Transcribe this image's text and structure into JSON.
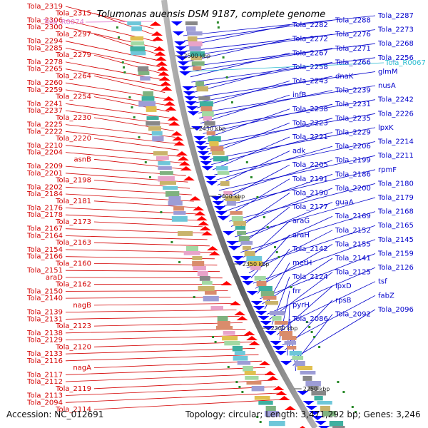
{
  "title": "Tolumonas auensis DSM 9187, complete genome",
  "footer": {
    "accession": "Accession: NC_012691",
    "topology": "Topology: circular; Length: 3,471,292 bp; Genes: 3,246"
  },
  "scale_labels": [
    "2500 kbp",
    "2450 kbp",
    "2400 kbp",
    "2350 kbp",
    "2300 kbp",
    "2250 kbp"
  ],
  "left_labels": [
    "Tola_2319",
    "Tola_2315",
    "Tola_2306",
    "Tola_2300",
    "Tola_2297",
    "Tola_2294",
    "Tola_2285",
    "Tola_2279",
    "Tola_2278",
    "Tola_2265",
    "Tola_2264",
    "Tola_2260",
    "Tola_2259",
    "Tola_2254",
    "Tola_2241",
    "Tola_2237",
    "Tola_2230",
    "Tola_2225",
    "Tola_2222",
    "Tola_2220",
    "Tola_2210",
    "Tola_2204",
    "asnB",
    "Tola_2209",
    "Tola_2201",
    "Tola_2198",
    "Tola_2202",
    "Tola_2184",
    "Tola_2181",
    "Tola_2176",
    "Tola_2178",
    "Tola_2173",
    "Tola_2167",
    "Tola_2164",
    "Tola_2163",
    "Tola_2154",
    "Tola_2166",
    "Tola_2160",
    "Tola_2151",
    "araD",
    "Tola_2162",
    "Tola_2150",
    "Tola_2140",
    "nagB",
    "Tola_2139",
    "Tola_2131",
    "Tola_2123",
    "Tola_2138",
    "Tola_2129",
    "Tola_2120",
    "Tola_2133",
    "Tola_2116",
    "nagA",
    "Tola_2117",
    "Tola_2112",
    "Tola_2119",
    "Tola_2113",
    "Tola_2094",
    "Tola_2114"
  ],
  "left_rna_label": "Tola_R0074",
  "right_labels": [
    "Tola_2287",
    "Tola_2288",
    "Tola_2282",
    "Tola_2273",
    "Tola_2276",
    "Tola_2272",
    "Tola_2268",
    "Tola_2271",
    "Tola_2267",
    "Tola_2256",
    "Tola_2266",
    "Tola_2258",
    "glmM",
    "dnaK",
    "Tola_2243",
    "nusA",
    "Tola_2239",
    "infB",
    "Tola_2242",
    "Tola_2231",
    "Tola_2238",
    "Tola_2226",
    "Tola_2235",
    "Tola_2223",
    "lpxK",
    "Tola_2229",
    "Tola_2221",
    "Tola_2214",
    "Tola_2206",
    "adk",
    "Tola_2211",
    "Tola_2199",
    "Tola_2205",
    "rpmF",
    "Tola_2186",
    "Tola_2191",
    "Tola_2180",
    "Tola_2200",
    "Tola_2190",
    "Tola_2179",
    "guaA",
    "Tola_2177",
    "Tola_2168",
    "Tola_2169",
    "araG",
    "Tola_2165",
    "Tola_2152",
    "araH",
    "Tola_2145",
    "Tola_2155",
    "Tola_2142",
    "Tola_2159",
    "Tola_2141",
    "metH",
    "Tola_2126",
    "Tola_2125",
    "Tola_2124",
    "tsf",
    "lpxD",
    "frr",
    "fabZ",
    "rpsB",
    "pyrH",
    "Tola_2096",
    "Tola_2092",
    "Tola_2086"
  ],
  "right_rna_label": "Tola_R0067",
  "colors": {
    "left_gene_lines": "#d40000",
    "right_gene_lines": "#0000cc",
    "backbone": "#8a8a8a",
    "forward_genes": "#ff0000",
    "reverse_genes": "#0000ff",
    "rna_left": "#e07ad0",
    "rna_right": "#2bbcd0"
  }
}
